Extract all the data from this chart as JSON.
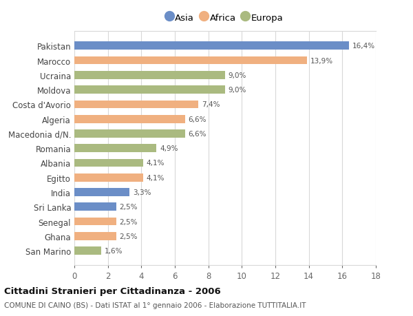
{
  "countries": [
    "Pakistan",
    "Marocco",
    "Ucraina",
    "Moldova",
    "Costa d'Avorio",
    "Algeria",
    "Macedonia d/N.",
    "Romania",
    "Albania",
    "Egitto",
    "India",
    "Sri Lanka",
    "Senegal",
    "Ghana",
    "San Marino"
  ],
  "values": [
    16.4,
    13.9,
    9.0,
    9.0,
    7.4,
    6.6,
    6.6,
    4.9,
    4.1,
    4.1,
    3.3,
    2.5,
    2.5,
    2.5,
    1.6
  ],
  "labels": [
    "16,4%",
    "13,9%",
    "9,0%",
    "9,0%",
    "7,4%",
    "6,6%",
    "6,6%",
    "4,9%",
    "4,1%",
    "4,1%",
    "3,3%",
    "2,5%",
    "2,5%",
    "2,5%",
    "1,6%"
  ],
  "continents": [
    "Asia",
    "Africa",
    "Europa",
    "Europa",
    "Africa",
    "Africa",
    "Europa",
    "Europa",
    "Europa",
    "Africa",
    "Asia",
    "Asia",
    "Africa",
    "Africa",
    "Europa"
  ],
  "colors": {
    "Asia": "#6b8ec7",
    "Africa": "#f0b080",
    "Europa": "#aaba80"
  },
  "legend_labels": [
    "Asia",
    "Africa",
    "Europa"
  ],
  "xlim": [
    0,
    18
  ],
  "xticks": [
    0,
    2,
    4,
    6,
    8,
    10,
    12,
    14,
    16,
    18
  ],
  "title": "Cittadini Stranieri per Cittadinanza - 2006",
  "subtitle": "COMUNE DI CAINO (BS) - Dati ISTAT al 1° gennaio 2006 - Elaborazione TUTTITALIA.IT",
  "bg_color": "#ffffff",
  "bar_height": 0.55,
  "grid_color": "#d8d8d8"
}
